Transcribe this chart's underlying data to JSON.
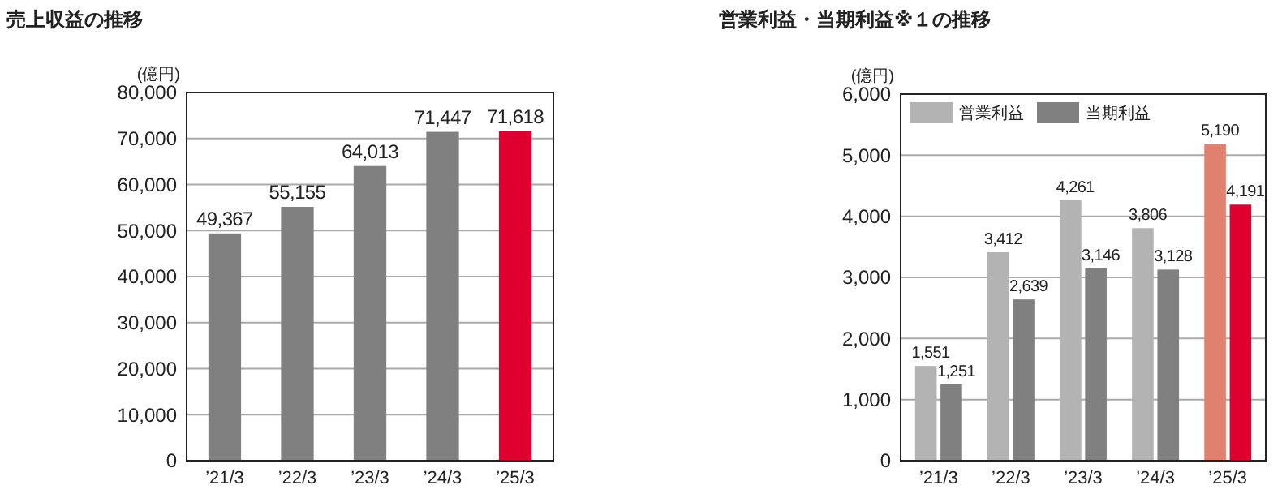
{
  "chart_data": [
    {
      "type": "bar",
      "title": "売上収益の推移",
      "ylabel": "(億円)",
      "categories": [
        "’21/3",
        "’22/3",
        "’23/3",
        "’24/3",
        "’25/3"
      ],
      "values": [
        49367,
        55155,
        64013,
        71447,
        71618
      ],
      "value_labels": [
        "49,367",
        "55,155",
        "64,013",
        "71,447",
        "71,618"
      ],
      "colors": [
        "#808080",
        "#808080",
        "#808080",
        "#808080",
        "#e0002f"
      ],
      "ylim": [
        0,
        80000
      ],
      "yticks": [
        {
          "value": 0,
          "label": "0"
        },
        {
          "value": 10000,
          "label": "10,000"
        },
        {
          "value": 20000,
          "label": "20,000"
        },
        {
          "value": 30000,
          "label": "30,000"
        },
        {
          "value": 40000,
          "label": "40,000"
        },
        {
          "value": 50000,
          "label": "50,000"
        },
        {
          "value": 60000,
          "label": "60,000"
        },
        {
          "value": 70000,
          "label": "70,000"
        },
        {
          "value": 80000,
          "label": "80,000"
        }
      ],
      "grid": "y",
      "legend": false
    },
    {
      "type": "bar",
      "title": "営業利益・当期利益※１の推移",
      "ylabel": "(億円)",
      "categories": [
        "’21/3",
        "’22/3",
        "’23/3",
        "’24/3",
        "’25/3"
      ],
      "series": [
        {
          "name": "営業利益",
          "color": "#b3b3b3",
          "colors": [
            "#b3b3b3",
            "#b3b3b3",
            "#b3b3b3",
            "#b3b3b3",
            "#e0806e"
          ],
          "values": [
            1551,
            3412,
            4261,
            3806,
            5190
          ],
          "value_labels": [
            "1,551",
            "3,412",
            "4,261",
            "3,806",
            "5,190"
          ]
        },
        {
          "name": "当期利益",
          "color": "#808080",
          "colors": [
            "#808080",
            "#808080",
            "#808080",
            "#808080",
            "#e0002f"
          ],
          "values": [
            1251,
            2639,
            3146,
            3128,
            4191
          ],
          "value_labels": [
            "1,251",
            "2,639",
            "3,146",
            "3,128",
            "4,191"
          ]
        }
      ],
      "ylim": [
        0,
        6000
      ],
      "yticks": [
        {
          "value": 0,
          "label": "0"
        },
        {
          "value": 1000,
          "label": "1,000"
        },
        {
          "value": 2000,
          "label": "2,000"
        },
        {
          "value": 3000,
          "label": "3,000"
        },
        {
          "value": 4000,
          "label": "4,000"
        },
        {
          "value": 5000,
          "label": "5,000"
        },
        {
          "value": 6000,
          "label": "6,000"
        }
      ],
      "grid": "y",
      "legend": "top left"
    }
  ]
}
